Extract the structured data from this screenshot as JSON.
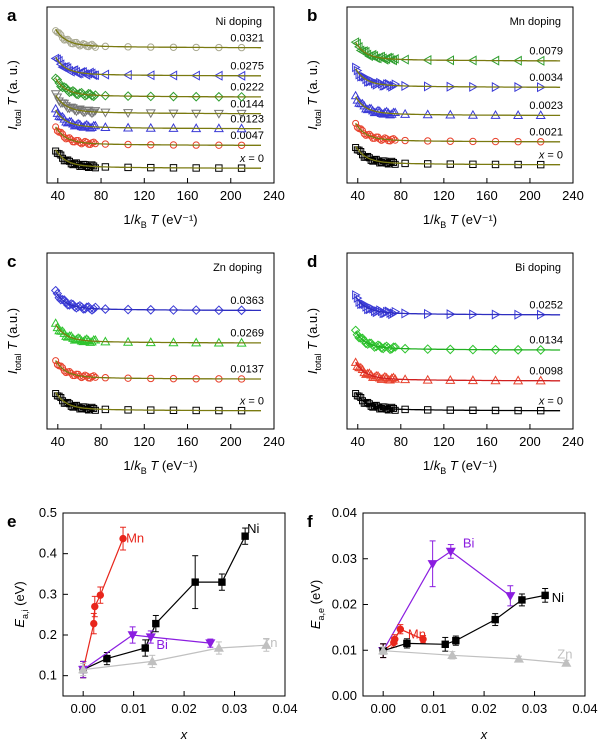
{
  "chart_data": [
    {
      "id": "a",
      "type": "scatter",
      "panel_label": "a",
      "title": "Ni doping",
      "xlabel": "1/k_B T (eV⁻¹)",
      "ylabel": "I_total T (a. u.)",
      "xlim": [
        30,
        240
      ],
      "xticks": [
        40,
        80,
        120,
        160,
        200,
        240
      ],
      "series": [
        {
          "name": "x = 0",
          "marker": "square",
          "color": "#000000"
        },
        {
          "name": "0.0047",
          "marker": "circle",
          "color": "#e8412c"
        },
        {
          "name": "0.0123",
          "marker": "triangle-up",
          "color": "#3b3bd6"
        },
        {
          "name": "0.0144",
          "marker": "triangle-down",
          "color": "#777777"
        },
        {
          "name": "0.0222",
          "marker": "diamond",
          "color": "#2f9e2f"
        },
        {
          "name": "0.0275",
          "marker": "triangle-left",
          "color": "#3b3bd6"
        },
        {
          "name": "0.0321",
          "marker": "circle",
          "color": "#a8a890"
        }
      ]
    },
    {
      "id": "b",
      "type": "scatter",
      "panel_label": "b",
      "title": "Mn doping",
      "xlabel": "1/k_B T (eV⁻¹)",
      "ylabel": "I_total T (a. u.)",
      "xlim": [
        30,
        240
      ],
      "xticks": [
        40,
        80,
        120,
        160,
        200,
        240
      ],
      "series": [
        {
          "name": "x = 0",
          "marker": "square",
          "color": "#000000"
        },
        {
          "name": "0.0021",
          "marker": "circle",
          "color": "#e8412c"
        },
        {
          "name": "0.0023",
          "marker": "triangle-up",
          "color": "#3b3bd6"
        },
        {
          "name": "0.0034",
          "marker": "triangle-right",
          "color": "#3b3bd6"
        },
        {
          "name": "0.0079",
          "marker": "triangle-left",
          "color": "#2f9e2f"
        }
      ]
    },
    {
      "id": "c",
      "type": "scatter",
      "panel_label": "c",
      "title": "Zn doping",
      "xlabel": "1/k_B T (eV⁻¹)",
      "ylabel": "I_total T (a.u.)",
      "xlim": [
        30,
        240
      ],
      "xticks": [
        40,
        80,
        120,
        160,
        200,
        240
      ],
      "series": [
        {
          "name": "x = 0",
          "marker": "square",
          "color": "#000000"
        },
        {
          "name": "0.0137",
          "marker": "circle",
          "color": "#e8412c"
        },
        {
          "name": "0.0269",
          "marker": "triangle-up",
          "color": "#2fc42f"
        },
        {
          "name": "0.0363",
          "marker": "diamond",
          "color": "#3b3bd6"
        }
      ]
    },
    {
      "id": "d",
      "type": "scatter",
      "panel_label": "d",
      "title": "Bi doping",
      "xlabel": "1/k_B T (eV⁻¹)",
      "ylabel": "I_total T (a.u.)",
      "xlim": [
        30,
        240
      ],
      "xticks": [
        40,
        80,
        120,
        160,
        200,
        240
      ],
      "series": [
        {
          "name": "x = 0",
          "marker": "square",
          "color": "#000000"
        },
        {
          "name": "0.0098",
          "marker": "triangle-up",
          "color": "#e8412c"
        },
        {
          "name": "0.0134",
          "marker": "diamond",
          "color": "#2fc42f"
        },
        {
          "name": "0.0252",
          "marker": "triangle-right",
          "color": "#3b3bd6"
        }
      ]
    },
    {
      "id": "e",
      "type": "line",
      "panel_label": "e",
      "xlabel": "x",
      "ylabel": "E_a,i (eV)",
      "xlim": [
        -0.004,
        0.04
      ],
      "ylim": [
        0.05,
        0.5
      ],
      "xticks": [
        0.0,
        0.01,
        0.02,
        0.03,
        0.04
      ],
      "yticks": [
        0.1,
        0.2,
        0.3,
        0.4,
        0.5
      ],
      "series": [
        {
          "name": "Mn",
          "color": "#e8261c",
          "marker": "circle",
          "x": [
            0,
            0.0021,
            0.0023,
            0.0034,
            0.0079
          ],
          "y": [
            0.115,
            0.228,
            0.27,
            0.298,
            0.437
          ],
          "err": [
            0.02,
            0.025,
            0.025,
            0.02,
            0.028
          ]
        },
        {
          "name": "Ni",
          "color": "#000000",
          "marker": "square",
          "x": [
            0,
            0.0047,
            0.0123,
            0.0144,
            0.0222,
            0.0275,
            0.0321
          ],
          "y": [
            0.115,
            0.142,
            0.168,
            0.228,
            0.33,
            0.33,
            0.443
          ],
          "err": [
            0.02,
            0.015,
            0.02,
            0.02,
            0.065,
            0.02,
            0.02
          ]
        },
        {
          "name": "Bi",
          "color": "#8b1ee0",
          "marker": "triangle-down",
          "x": [
            0,
            0.0098,
            0.0134,
            0.0252
          ],
          "y": [
            0.115,
            0.2,
            0.195,
            0.18
          ],
          "err": [
            0.02,
            0.02,
            0.015,
            0.01
          ]
        },
        {
          "name": "Zn",
          "color": "#c0c0c0",
          "marker": "triangle-up",
          "x": [
            0,
            0.0137,
            0.0269,
            0.0363
          ],
          "y": [
            0.115,
            0.135,
            0.168,
            0.175
          ],
          "err": [
            0.015,
            0.015,
            0.015,
            0.015
          ]
        }
      ]
    },
    {
      "id": "f",
      "type": "line",
      "panel_label": "f",
      "xlabel": "x",
      "ylabel": "E_a,e (eV)",
      "xlim": [
        -0.004,
        0.04
      ],
      "ylim": [
        0,
        0.04
      ],
      "xticks": [
        0.0,
        0.01,
        0.02,
        0.03,
        0.04
      ],
      "yticks": [
        0.0,
        0.01,
        0.02,
        0.03,
        0.04
      ],
      "series": [
        {
          "name": "Bi",
          "color": "#8b1ee0",
          "marker": "triangle-down",
          "x": [
            0,
            0.0098,
            0.0134,
            0.0252
          ],
          "y": [
            0.0099,
            0.0289,
            0.0316,
            0.0219
          ],
          "err": [
            0.0015,
            0.005,
            0.0015,
            0.0022
          ]
        },
        {
          "name": "Mn",
          "color": "#e8261c",
          "marker": "circle",
          "x": [
            0,
            0.0021,
            0.0023,
            0.0034,
            0.0079
          ],
          "y": [
            0.0099,
            0.0117,
            0.0124,
            0.0146,
            0.0124
          ],
          "err": [
            0.0015,
            0.001,
            0.001,
            0.001,
            0.0008
          ]
        },
        {
          "name": "Ni",
          "color": "#000000",
          "marker": "square",
          "x": [
            0,
            0.0047,
            0.0123,
            0.0144,
            0.0222,
            0.0275,
            0.0321
          ],
          "y": [
            0.0099,
            0.0115,
            0.0113,
            0.0121,
            0.0167,
            0.021,
            0.022
          ],
          "err": [
            0.0015,
            0.001,
            0.0015,
            0.001,
            0.0013,
            0.0013,
            0.0015
          ]
        },
        {
          "name": "Zn",
          "color": "#c0c0c0",
          "marker": "triangle-up",
          "x": [
            0,
            0.0137,
            0.0269,
            0.0363
          ],
          "y": [
            0.0099,
            0.0089,
            0.0081,
            0.0072
          ],
          "err": [
            0.0008,
            0.0008,
            0.0006,
            0.0006
          ]
        }
      ]
    }
  ]
}
